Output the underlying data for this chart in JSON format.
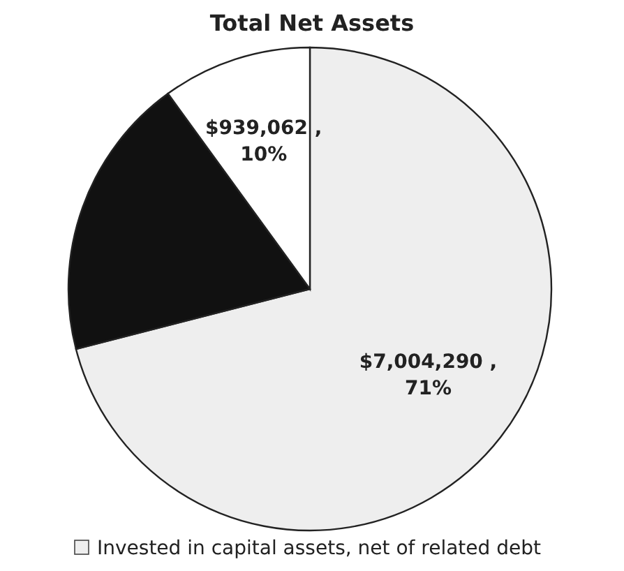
{
  "chart_data": {
    "type": "pie",
    "title": "Total Net Assets",
    "categories": [
      "Invested in capital assets, net of related debt",
      null,
      null
    ],
    "values": [
      71,
      19,
      10
    ],
    "colors": [
      "#eeeeee",
      "#111111",
      "#ffffff"
    ],
    "value_labels": [
      "$7,004,290 , 71%",
      null,
      "$939,062 , 10%"
    ],
    "legend": "bottom"
  }
}
